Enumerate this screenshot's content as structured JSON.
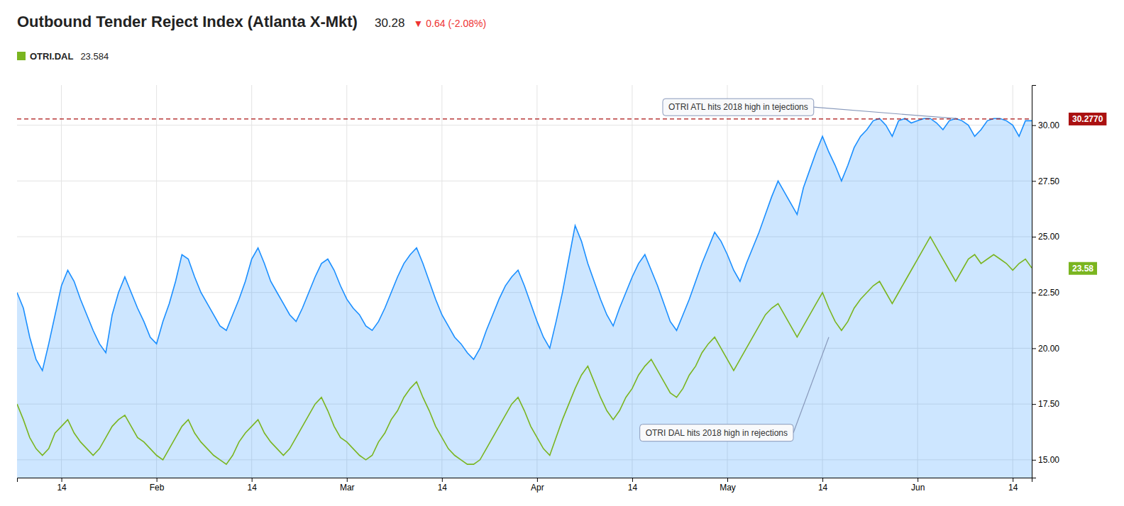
{
  "chart_data": {
    "type": "line",
    "title": "Outbound Tender Reject Index (Atlanta X-Mkt)",
    "title_value": 30.28,
    "title_change": {
      "text": "▼ 0.64 (-2.08%)",
      "color": "#ee3333"
    },
    "categories": [
      null,
      null,
      null,
      null,
      null,
      null,
      null,
      "14",
      null,
      null,
      null,
      null,
      null,
      null,
      null,
      null,
      null,
      null,
      null,
      null,
      null,
      null,
      "Feb",
      null,
      null,
      null,
      null,
      null,
      null,
      null,
      null,
      null,
      null,
      null,
      null,
      null,
      null,
      "14",
      null,
      null,
      null,
      null,
      null,
      null,
      null,
      null,
      null,
      null,
      null,
      null,
      null,
      null,
      "Mar",
      null,
      null,
      null,
      null,
      null,
      null,
      null,
      null,
      null,
      null,
      null,
      null,
      null,
      null,
      "14",
      null,
      null,
      null,
      null,
      null,
      null,
      null,
      null,
      null,
      null,
      null,
      null,
      null,
      null,
      "Apr",
      null,
      null,
      null,
      null,
      null,
      null,
      null,
      null,
      null,
      null,
      null,
      null,
      null,
      null,
      "14",
      null,
      null,
      null,
      null,
      null,
      null,
      null,
      null,
      null,
      null,
      null,
      null,
      null,
      null,
      "May",
      null,
      null,
      null,
      null,
      null,
      null,
      null,
      null,
      null,
      null,
      null,
      null,
      null,
      null,
      "14",
      null,
      null,
      null,
      null,
      null,
      null,
      null,
      null,
      null,
      null,
      null,
      null,
      null,
      null,
      "Jun",
      null,
      null,
      null,
      null,
      null,
      null,
      null,
      null,
      null,
      null,
      null,
      null,
      null,
      null,
      "14",
      null,
      null,
      null
    ],
    "series": [
      {
        "type": "area",
        "color": "#1b8fff",
        "values": [
          22.5,
          21.8,
          20.5,
          19.5,
          19.0,
          20.2,
          21.5,
          22.8,
          23.5,
          23.0,
          22.2,
          21.5,
          20.8,
          20.2,
          19.8,
          21.5,
          22.5,
          23.2,
          22.5,
          21.8,
          21.2,
          20.5,
          20.2,
          21.2,
          22.0,
          23.0,
          24.2,
          24.0,
          23.2,
          22.5,
          22.0,
          21.5,
          21.0,
          20.8,
          21.5,
          22.2,
          23.0,
          24.0,
          24.5,
          23.8,
          23.0,
          22.5,
          22.0,
          21.5,
          21.2,
          21.8,
          22.5,
          23.2,
          23.8,
          24.0,
          23.5,
          22.8,
          22.2,
          21.8,
          21.5,
          21.0,
          20.8,
          21.2,
          21.8,
          22.5,
          23.2,
          23.8,
          24.2,
          24.5,
          23.8,
          23.0,
          22.2,
          21.5,
          21.0,
          20.5,
          20.2,
          19.8,
          19.5,
          20.0,
          20.8,
          21.5,
          22.2,
          22.8,
          23.2,
          23.5,
          22.8,
          22.0,
          21.2,
          20.5,
          20.0,
          21.2,
          22.5,
          24.0,
          25.5,
          24.8,
          23.8,
          23.0,
          22.2,
          21.5,
          21.0,
          21.8,
          22.5,
          23.2,
          23.8,
          24.2,
          23.5,
          22.8,
          22.0,
          21.2,
          20.8,
          21.5,
          22.2,
          23.0,
          23.8,
          24.5,
          25.2,
          24.8,
          24.2,
          23.5,
          23.0,
          23.8,
          24.5,
          25.2,
          26.0,
          26.8,
          27.5,
          27.0,
          26.5,
          26.0,
          27.2,
          28.0,
          28.8,
          29.5,
          28.8,
          28.2,
          27.5,
          28.2,
          29.0,
          29.5,
          29.8,
          30.2,
          30.3,
          30.0,
          29.5,
          30.2,
          30.3,
          30.1,
          30.2,
          30.3,
          30.3,
          30.1,
          29.8,
          30.2,
          30.3,
          30.2,
          30.0,
          29.5,
          29.8,
          30.2,
          30.3,
          30.3,
          30.2,
          30.0,
          29.5,
          30.2,
          30.2
        ]
      },
      {
        "name": "OTRI.DAL",
        "type": "line",
        "color": "#7ab520",
        "legend_value": 23.584,
        "last_value": 23.58,
        "last_value_label": "23.58",
        "values": [
          17.5,
          16.8,
          16.0,
          15.5,
          15.2,
          15.5,
          16.2,
          16.5,
          16.8,
          16.2,
          15.8,
          15.5,
          15.2,
          15.5,
          16.0,
          16.5,
          16.8,
          17.0,
          16.5,
          16.0,
          15.8,
          15.5,
          15.2,
          15.0,
          15.5,
          16.0,
          16.5,
          16.8,
          16.2,
          15.8,
          15.5,
          15.2,
          15.0,
          14.8,
          15.2,
          15.8,
          16.2,
          16.5,
          16.8,
          16.2,
          15.8,
          15.5,
          15.2,
          15.5,
          16.0,
          16.5,
          17.0,
          17.5,
          17.8,
          17.2,
          16.5,
          16.0,
          15.8,
          15.5,
          15.2,
          15.0,
          15.2,
          15.8,
          16.2,
          16.8,
          17.2,
          17.8,
          18.2,
          18.5,
          17.8,
          17.2,
          16.5,
          16.0,
          15.5,
          15.2,
          15.0,
          14.8,
          14.8,
          15.0,
          15.5,
          16.0,
          16.5,
          17.0,
          17.5,
          17.8,
          17.2,
          16.5,
          16.0,
          15.5,
          15.2,
          16.0,
          16.8,
          17.5,
          18.2,
          18.8,
          19.2,
          18.5,
          17.8,
          17.2,
          16.8,
          17.2,
          17.8,
          18.2,
          18.8,
          19.2,
          19.5,
          19.0,
          18.5,
          18.0,
          17.8,
          18.2,
          18.8,
          19.2,
          19.8,
          20.2,
          20.5,
          20.0,
          19.5,
          19.0,
          19.5,
          20.0,
          20.5,
          21.0,
          21.5,
          21.8,
          22.0,
          21.5,
          21.0,
          20.5,
          21.0,
          21.5,
          22.0,
          22.5,
          21.8,
          21.2,
          20.8,
          21.2,
          21.8,
          22.2,
          22.5,
          22.8,
          23.0,
          22.5,
          22.0,
          22.5,
          23.0,
          23.5,
          24.0,
          24.5,
          25.0,
          24.5,
          24.0,
          23.5,
          23.0,
          23.5,
          24.0,
          24.2,
          23.8,
          24.0,
          24.2,
          24.0,
          23.8,
          23.5,
          23.8,
          24.0,
          23.6
        ]
      }
    ],
    "reference_lines": [
      {
        "value": 30.277,
        "label": "30.2770",
        "color": "#aa1111",
        "line_style": "dashed"
      }
    ],
    "annotations": [
      {
        "text": "OTRI ATL hits 2018 high in tejections",
        "x": 148,
        "y": 30.3
      },
      {
        "text": "OTRI DAL hits 2018 high in rejections",
        "x": 128,
        "y": 20.5
      }
    ],
    "ylim": [
      14.2,
      31.8
    ],
    "yticks": [
      {
        "value": 15.0,
        "label": "15.00"
      },
      {
        "value": 17.5,
        "label": "17.50"
      },
      {
        "value": 20.0,
        "label": "20.00"
      },
      {
        "value": 22.5,
        "label": "22.50"
      },
      {
        "value": 25.0,
        "label": "25.00"
      },
      {
        "value": 27.5,
        "label": "27.50"
      },
      {
        "value": 30.0,
        "label": "30.00"
      }
    ],
    "grid": true,
    "legend": "top-left"
  }
}
